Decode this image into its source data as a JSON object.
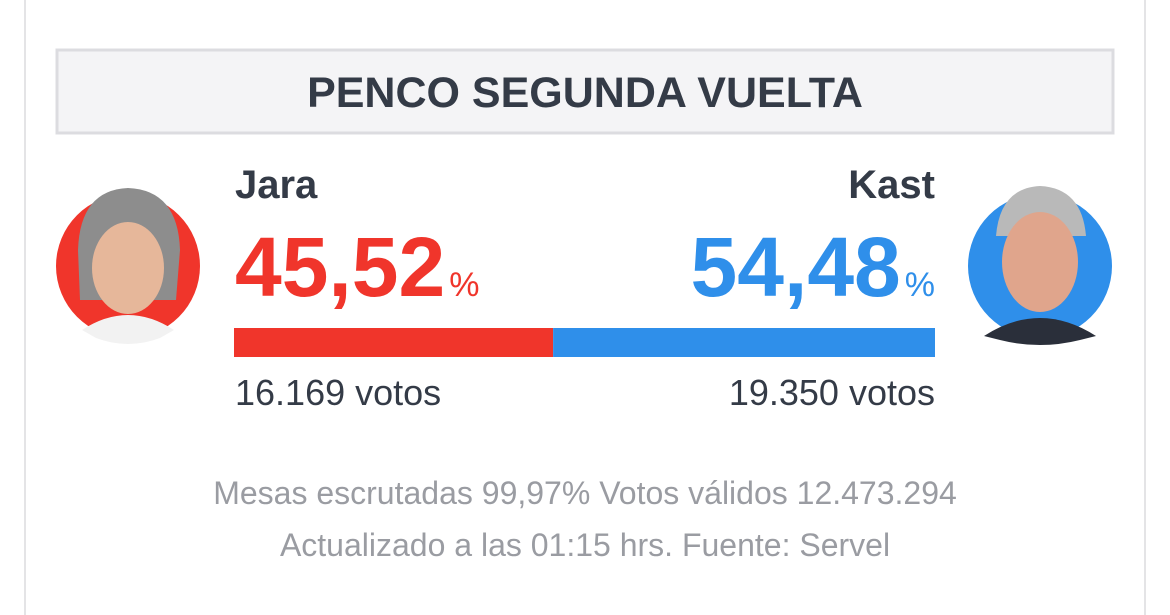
{
  "header": {
    "title": "PENCO SEGUNDA VUELTA"
  },
  "candidates": [
    {
      "name": "Jara",
      "share": {
        "value": 45.52,
        "label": "45,52"
      },
      "unit": "%",
      "color": "#f0352b",
      "votes": "16.169 votos"
    },
    {
      "name": "Kast",
      "share": {
        "value": 54.48,
        "label": "54,48"
      },
      "unit": "%",
      "color": "#2f8fea",
      "votes": "19.350 votos"
    }
  ],
  "footer": {
    "line1": "Mesas escrutadas 99,97% Votos válidos 12.473.294",
    "line2": "Actualizado a las 01:15 hrs. Fuente: Servel"
  }
}
